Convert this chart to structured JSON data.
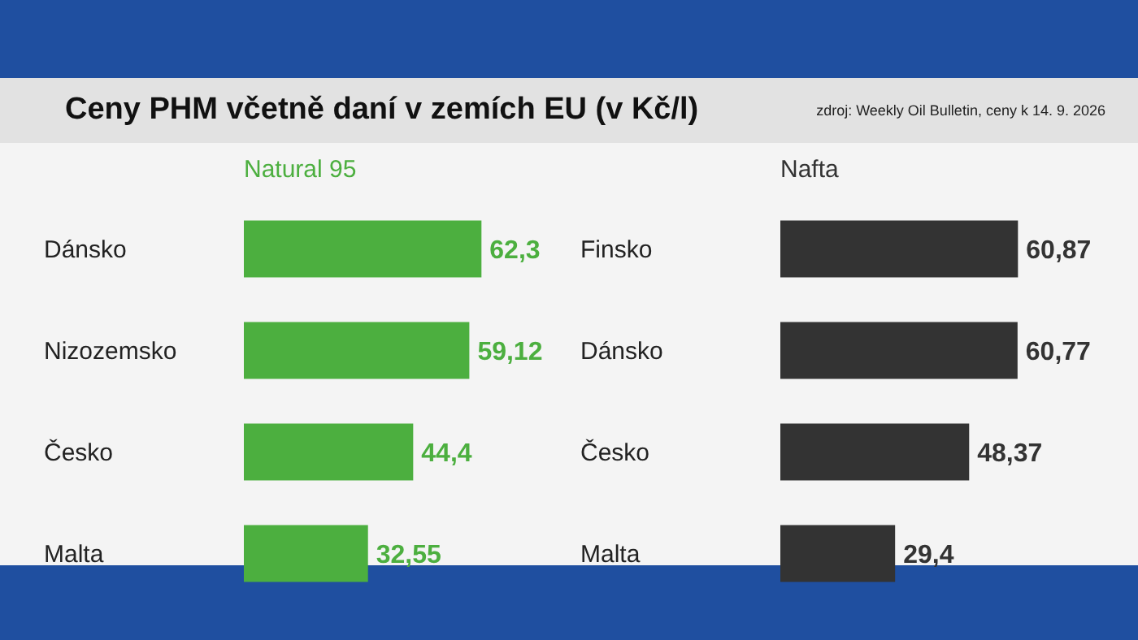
{
  "chart_data": [
    {
      "type": "bar",
      "orientation": "horizontal",
      "title": "Ceny PHM včetně daní v zemích EU (v Kč/l)",
      "annotations": [
        "zdroj: Weekly Oil Bulletin, ceny k 14. 9. 2026"
      ],
      "categories": [
        "Dánsko",
        "Nizozemsko",
        "Česko",
        "Malta"
      ],
      "series": [
        {
          "name": "Natural 95",
          "color": "#4caf3f",
          "values": [
            62.3,
            59.12,
            44.4,
            32.55
          ],
          "value_labels": [
            "62,3",
            "59,12",
            "44,4",
            "32,55"
          ]
        }
      ]
    },
    {
      "type": "bar",
      "orientation": "horizontal",
      "categories": [
        "Finsko",
        "Dánsko",
        "Česko",
        "Malta"
      ],
      "series": [
        {
          "name": "Nafta",
          "color": "#333333",
          "values": [
            60.87,
            60.77,
            48.37,
            29.4
          ],
          "value_labels": [
            "60,87",
            "60,77",
            "48,37",
            "29,4"
          ]
        }
      ]
    }
  ]
}
